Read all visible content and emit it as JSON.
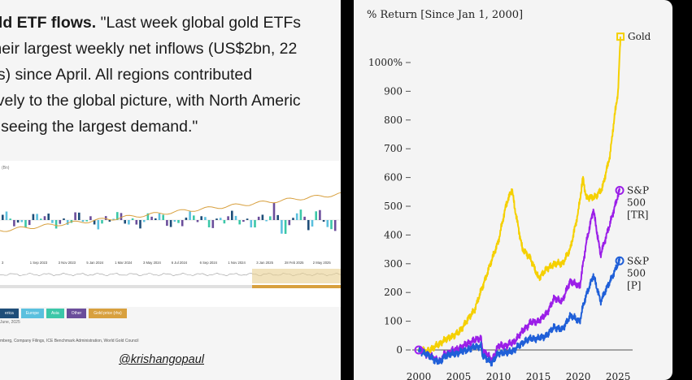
{
  "post": {
    "line1_bold": "old ETF flows.",
    "line1_rest": " \"Last week global gold ETFs",
    "line2": "their largest weekly net inflows (US$2bn, 22",
    "line3": "es) since April. All regions contributed",
    "line4": "tively to the global picture, with North Americ",
    "line5": "s seeing the largest demand.\"",
    "handle": "@krishangopaul"
  },
  "etf_chart": {
    "unit_label": "(Bn)",
    "x_ticks": [
      "3",
      "1 Sep 2023",
      "3 Nov 2023",
      "5 Jan 2024",
      "1 Mar 2024",
      "3 May 2024",
      "6 Jul 2024",
      "6 Sep 2024",
      "1 Nov 2024",
      "3 Jan 2025",
      "28 Feb 2025",
      "2 May 2025"
    ],
    "legend": [
      {
        "label": "erica",
        "color": "#1f4e79"
      },
      {
        "label": "Europe",
        "color": "#5bc0de"
      },
      {
        "label": "Asia",
        "color": "#3cc7a8"
      },
      {
        "label": "Other",
        "color": "#6b4e9b"
      },
      {
        "label": "Gold price (rhs)",
        "color": "#d8a03e"
      }
    ],
    "legend_date": "June, 2025",
    "source": "mberg, Company Filings, ICE Benchmark Administration, World Gold Council"
  },
  "chart_data": {
    "type": "line",
    "title": "% Return [Since Jan 1, 2000]",
    "xlabel": "",
    "ylabel": "",
    "xlim": [
      2000,
      2025.5
    ],
    "ylim": [
      -25,
      1100
    ],
    "x_ticks": [
      2000,
      2005,
      2010,
      2015,
      2020,
      2025
    ],
    "y_ticks": [
      0,
      100,
      200,
      300,
      400,
      500,
      600,
      700,
      800,
      900,
      1000
    ],
    "y_tick_labels": [
      "0",
      "100",
      "200",
      "300",
      "400",
      "500",
      "600",
      "700",
      "800",
      "900",
      "1000%"
    ],
    "series": [
      {
        "name": "Gold",
        "color": "#f5d000",
        "x": [
          2000,
          2001,
          2002,
          2003,
          2004,
          2005,
          2006,
          2007,
          2008,
          2009,
          2010,
          2011,
          2011.7,
          2012,
          2013,
          2014,
          2015,
          2016,
          2017,
          2018,
          2019,
          2020,
          2020.6,
          2021,
          2022,
          2023,
          2024,
          2024.5,
          2025,
          2025.3
        ],
        "y": [
          0,
          -5,
          10,
          30,
          45,
          60,
          100,
          140,
          220,
          300,
          380,
          510,
          560,
          500,
          350,
          320,
          250,
          280,
          300,
          300,
          350,
          480,
          600,
          530,
          530,
          560,
          680,
          800,
          900,
          1090
        ]
      },
      {
        "name": "S&P 500 [TR]",
        "color": "#9b1fe8",
        "x": [
          2000,
          2001,
          2002,
          2002.8,
          2003,
          2004,
          2005,
          2006,
          2007,
          2007.8,
          2008,
          2009.2,
          2010,
          2011,
          2012,
          2013,
          2014,
          2015,
          2016,
          2017,
          2018,
          2019,
          2020.2,
          2020.5,
          2021,
          2021.9,
          2022.8,
          2023,
          2024,
          2025,
          2025.2
        ],
        "y": [
          0,
          -15,
          -30,
          -40,
          -20,
          -5,
          5,
          20,
          35,
          40,
          0,
          -35,
          15,
          15,
          30,
          65,
          95,
          100,
          125,
          180,
          170,
          240,
          220,
          280,
          370,
          490,
          330,
          350,
          440,
          540,
          555
        ]
      },
      {
        "name": "S&P 500 [P]",
        "color": "#1f5fd8",
        "x": [
          2000,
          2001,
          2002,
          2002.8,
          2003,
          2004,
          2005,
          2006,
          2007,
          2007.8,
          2008,
          2009.2,
          2010,
          2011,
          2012,
          2013,
          2014,
          2015,
          2016,
          2017,
          2018,
          2019,
          2020.2,
          2020.5,
          2021,
          2021.9,
          2022.8,
          2023,
          2024,
          2025,
          2025.2
        ],
        "y": [
          0,
          -15,
          -35,
          -45,
          -25,
          -15,
          -10,
          0,
          10,
          15,
          -20,
          -45,
          -10,
          -10,
          0,
          25,
          40,
          40,
          50,
          80,
          70,
          120,
          100,
          140,
          190,
          260,
          170,
          180,
          240,
          300,
          310
        ]
      }
    ],
    "series_labels": [
      {
        "series": 0,
        "lines": [
          "Gold"
        ]
      },
      {
        "series": 1,
        "lines": [
          "S&P",
          "500",
          "[TR]"
        ]
      },
      {
        "series": 2,
        "lines": [
          "S&P",
          "500",
          "[P]"
        ]
      }
    ],
    "grid": false,
    "legend": "inline labels at line ends"
  }
}
